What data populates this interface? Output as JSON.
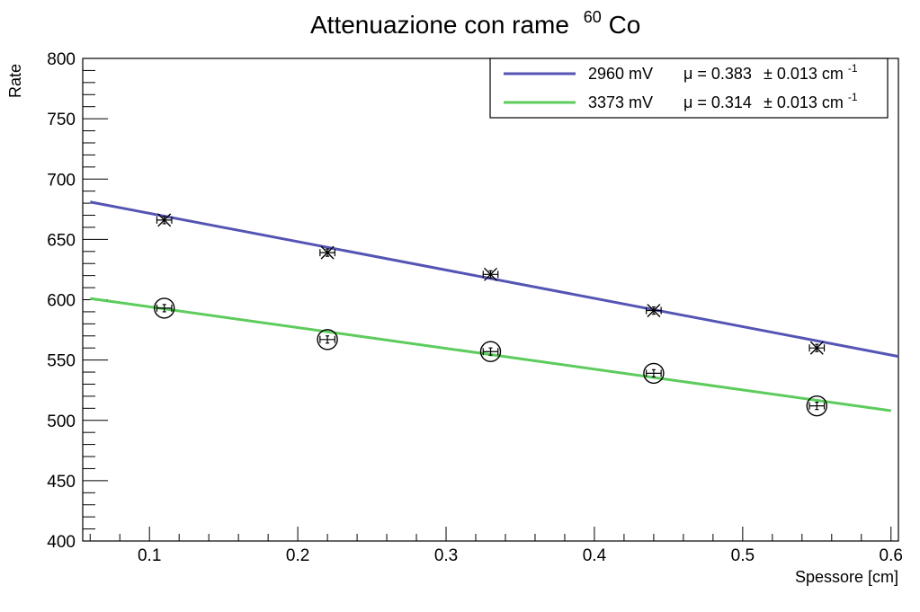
{
  "chart_data": {
    "type": "scatter",
    "title": "Attenuazione con rame",
    "title_isotope": "Co",
    "title_isotope_mass": "60",
    "xlabel": "Spessore [cm]",
    "ylabel": "Rate",
    "xlim": [
      0.055,
      0.605
    ],
    "ylim": [
      400,
      800
    ],
    "x_ticks": [
      0.1,
      0.2,
      0.3,
      0.4,
      0.5,
      0.6
    ],
    "x_tick_labels": [
      "0.1",
      "0.2",
      "0.3",
      "0.4",
      "0.5",
      "0.6"
    ],
    "y_ticks": [
      400,
      450,
      500,
      550,
      600,
      650,
      700,
      750,
      800
    ],
    "y_tick_labels": [
      "400",
      "450",
      "500",
      "550",
      "600",
      "650",
      "700",
      "750",
      "800"
    ],
    "grid": false,
    "legend_position": "top-right",
    "series": [
      {
        "name": "2960 mV",
        "color": "#5454b4",
        "marker": "x-cross",
        "points": [
          {
            "x": 0.11,
            "y": 666,
            "xerr": 0.005,
            "yerr": 3
          },
          {
            "x": 0.22,
            "y": 639,
            "xerr": 0.005,
            "yerr": 3
          },
          {
            "x": 0.33,
            "y": 621,
            "xerr": 0.005,
            "yerr": 3
          },
          {
            "x": 0.44,
            "y": 591,
            "xerr": 0.005,
            "yerr": 3
          },
          {
            "x": 0.55,
            "y": 560,
            "xerr": 0.005,
            "yerr": 3
          }
        ],
        "fit": {
          "x0": 0.06,
          "y0": 681,
          "x1": 0.605,
          "y1": 553
        },
        "legend_label": "2960 mV",
        "legend_mu": "μ = 0.383",
        "legend_err": "± 0.013 cm",
        "legend_exp": "-1"
      },
      {
        "name": "3373 mV",
        "color": "#5ccc5c",
        "marker": "open-circle",
        "points": [
          {
            "x": 0.11,
            "y": 593,
            "xerr": 0.005,
            "yerr": 3
          },
          {
            "x": 0.22,
            "y": 567,
            "xerr": 0.005,
            "yerr": 3
          },
          {
            "x": 0.33,
            "y": 557,
            "xerr": 0.005,
            "yerr": 3
          },
          {
            "x": 0.44,
            "y": 539,
            "xerr": 0.005,
            "yerr": 3
          },
          {
            "x": 0.55,
            "y": 512,
            "xerr": 0.005,
            "yerr": 3
          }
        ],
        "fit": {
          "x0": 0.06,
          "y0": 601,
          "x1": 0.6,
          "y1": 508
        },
        "legend_label": "3373 mV",
        "legend_mu": "μ = 0.314",
        "legend_err": "± 0.013 cm",
        "legend_exp": "-1"
      }
    ]
  }
}
